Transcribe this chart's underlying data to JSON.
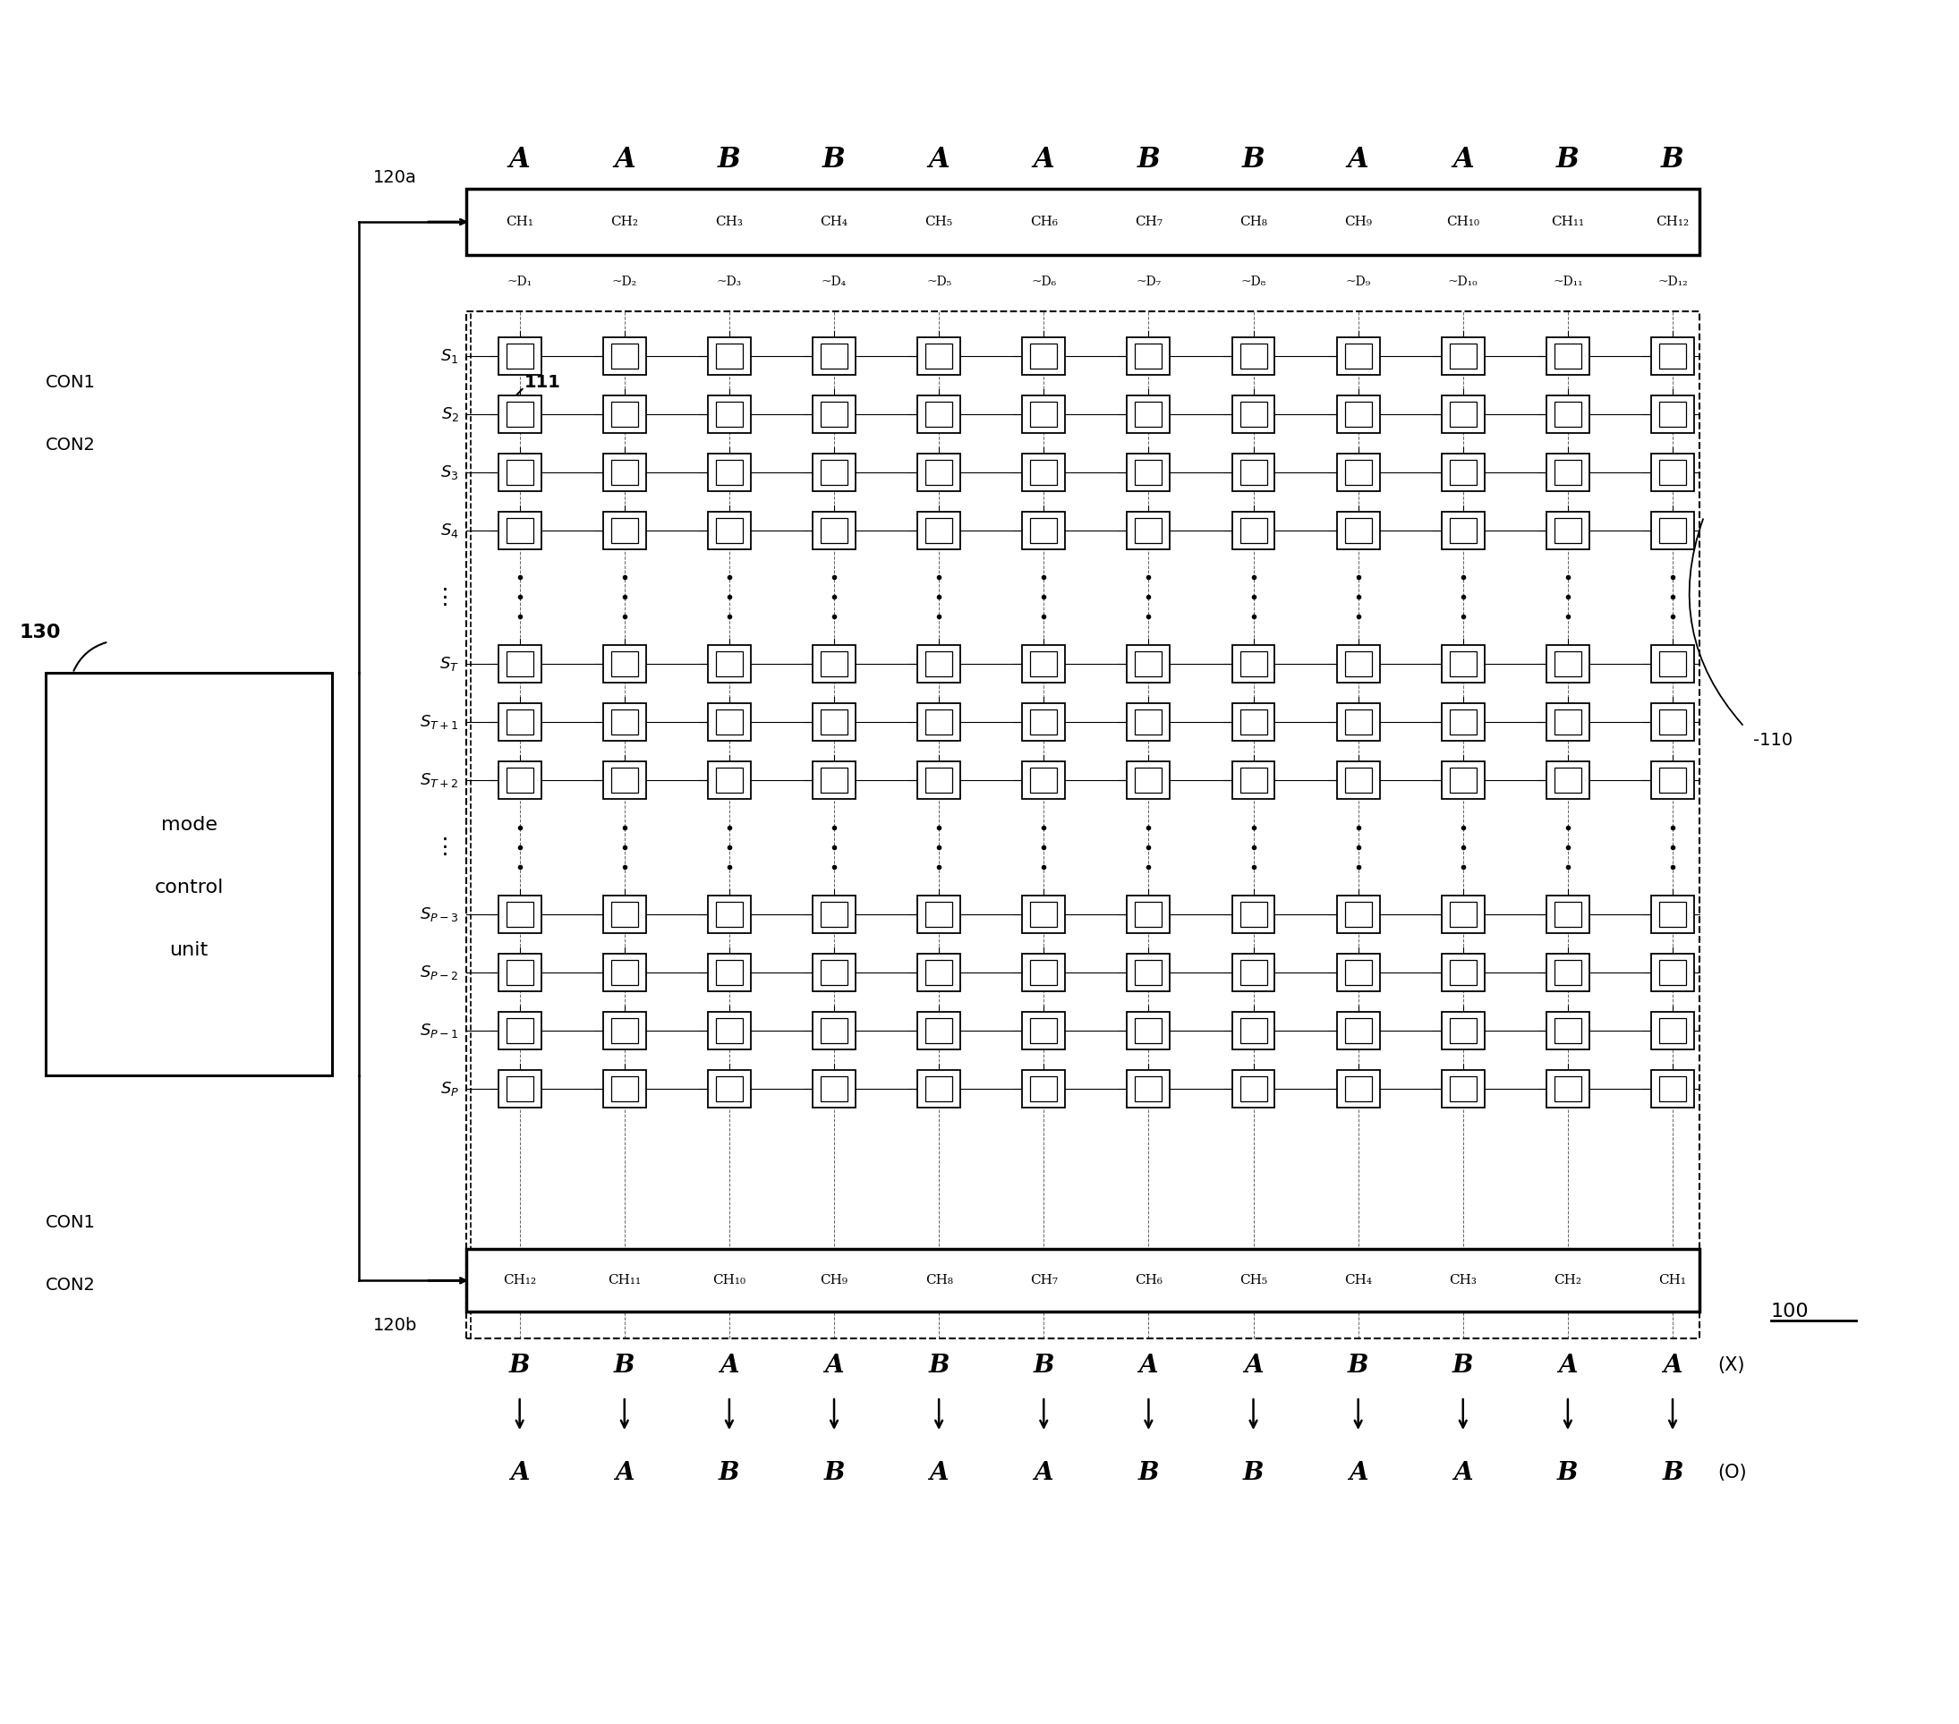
{
  "bg_color": "#ffffff",
  "fig_width": 21.89,
  "fig_height": 19.27,
  "top_AB_labels": [
    "A",
    "A",
    "B",
    "B",
    "A",
    "A",
    "B",
    "B",
    "A",
    "A",
    "B",
    "B"
  ],
  "top_CH_labels": [
    "CH₁",
    "CH₂",
    "CH₃",
    "CH₄",
    "CH₅",
    "CH₆",
    "CH₇",
    "CH₈",
    "CH₉",
    "CH₁₀",
    "CH₁₁",
    "CH₁₂"
  ],
  "D_labels": [
    "~D₁",
    "~D₂",
    "~D₃",
    "~D₄",
    "~D₅",
    "~D₆",
    "~D₇",
    "~D₈",
    "~D₉",
    "~D₁₀",
    "~D₁₁",
    "~D₁₂"
  ],
  "bottom_CH_labels": [
    "CH₁₂",
    "CH₁₁",
    "CH₁₀",
    "CH₉",
    "CH₈",
    "CH₇",
    "CH₆",
    "CH₅",
    "CH₄",
    "CH₃",
    "CH₂",
    "CH₁"
  ],
  "bottom_X_labels": [
    "B",
    "B",
    "A",
    "A",
    "B",
    "B",
    "A",
    "A",
    "B",
    "B",
    "A",
    "A"
  ],
  "bottom_O_labels": [
    "A",
    "A",
    "B",
    "B",
    "A",
    "A",
    "B",
    "B",
    "A",
    "A",
    "B",
    "B"
  ],
  "label_120a": "120a",
  "label_120b": "120b",
  "label_130": "130",
  "label_111": "111",
  "label_110": "-110",
  "label_100": "100"
}
